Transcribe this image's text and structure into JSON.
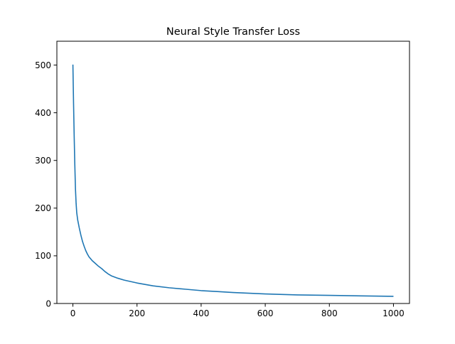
{
  "chart_data": {
    "type": "line",
    "title": "Neural Style Transfer Loss",
    "xlabel": "",
    "ylabel": "",
    "xlim": [
      -50,
      1050
    ],
    "ylim": [
      0,
      550
    ],
    "xticks": [
      0,
      200,
      400,
      600,
      800,
      1000
    ],
    "yticks": [
      0,
      100,
      200,
      300,
      400,
      500
    ],
    "grid": false,
    "series": [
      {
        "color": "#1f77b4",
        "x": [
          0,
          2,
          4,
          6,
          8,
          10,
          12,
          15,
          20,
          25,
          30,
          35,
          40,
          45,
          50,
          60,
          70,
          80,
          90,
          100,
          110,
          120,
          140,
          160,
          180,
          200,
          250,
          300,
          350,
          400,
          450,
          500,
          600,
          700,
          800,
          900,
          1000
        ],
        "y": [
          501,
          420,
          350,
          290,
          240,
          210,
          190,
          175,
          158,
          143,
          130,
          120,
          111,
          104,
          98,
          90,
          84,
          78,
          73,
          67,
          62,
          58,
          53,
          49,
          46,
          43,
          37,
          33,
          30,
          27,
          25,
          23,
          20,
          18,
          17,
          16,
          15
        ]
      }
    ]
  }
}
